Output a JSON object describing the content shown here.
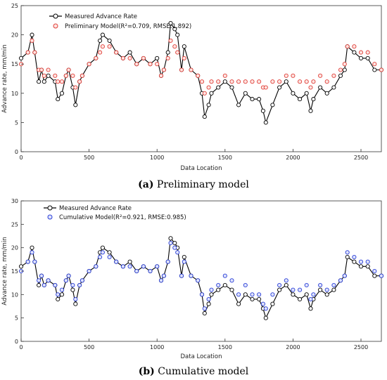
{
  "chart_data": [
    {
      "type": "scatter",
      "caption_label": "(a)",
      "caption_text": "Preliminary model",
      "xlabel": "Data Location",
      "ylabel": "Advance rate, mm/min",
      "xlim": [
        0,
        2650
      ],
      "ylim": [
        0,
        25
      ],
      "xticks": [
        0,
        500,
        1000,
        1500,
        2000,
        2500
      ],
      "yticks": [
        0,
        5,
        10,
        15,
        20,
        25
      ],
      "grid": false,
      "legend_position": "top-left",
      "series": [
        {
          "name": "Measured Advance Rate",
          "color": "#000000",
          "marker": "circle-line",
          "x": [
            0,
            50,
            80,
            100,
            130,
            150,
            170,
            200,
            250,
            270,
            300,
            330,
            350,
            380,
            400,
            430,
            450,
            500,
            550,
            580,
            600,
            650,
            700,
            750,
            800,
            850,
            900,
            950,
            1000,
            1030,
            1050,
            1080,
            1100,
            1130,
            1150,
            1180,
            1200,
            1250,
            1300,
            1330,
            1350,
            1380,
            1400,
            1450,
            1500,
            1550,
            1600,
            1650,
            1700,
            1750,
            1780,
            1800,
            1850,
            1900,
            1950,
            2000,
            2050,
            2100,
            2130,
            2150,
            2200,
            2250,
            2300,
            2350,
            2380,
            2400,
            2450,
            2500,
            2550,
            2600,
            2650
          ],
          "y": [
            16,
            17,
            20,
            17,
            12,
            14,
            12,
            13,
            12,
            9,
            10,
            13,
            14,
            11,
            8,
            12,
            13,
            15,
            16,
            19,
            20,
            19,
            17,
            16,
            17,
            15,
            16,
            15,
            16,
            13,
            14,
            17,
            22,
            21,
            20,
            14,
            18,
            14,
            13,
            10,
            6,
            8,
            10,
            11,
            12,
            11,
            8,
            10,
            9,
            9,
            7,
            5,
            8,
            11,
            12,
            10,
            9,
            10,
            7,
            9,
            11,
            10,
            11,
            13,
            14,
            18,
            17,
            16,
            16,
            14,
            14
          ]
        },
        {
          "name": "Preliminary Model(R²=0.709, RMSE:1.892)",
          "color": "#e0403a",
          "marker": "circle",
          "x": [
            0,
            50,
            80,
            100,
            130,
            150,
            170,
            200,
            250,
            270,
            300,
            330,
            350,
            380,
            400,
            430,
            450,
            500,
            550,
            580,
            600,
            650,
            700,
            750,
            800,
            850,
            900,
            950,
            1000,
            1030,
            1050,
            1080,
            1100,
            1130,
            1150,
            1180,
            1200,
            1250,
            1300,
            1330,
            1350,
            1380,
            1400,
            1450,
            1500,
            1550,
            1600,
            1650,
            1700,
            1750,
            1780,
            1800,
            1850,
            1900,
            1950,
            2000,
            2050,
            2100,
            2130,
            2150,
            2200,
            2250,
            2300,
            2350,
            2380,
            2400,
            2450,
            2500,
            2550,
            2600,
            2650
          ],
          "y": [
            15,
            17,
            19,
            17,
            14,
            14,
            13,
            14,
            13,
            12,
            12,
            13,
            14,
            13,
            11,
            12,
            13,
            15,
            16,
            17,
            18,
            18,
            17,
            16,
            16,
            15,
            16,
            15,
            15,
            13,
            14,
            16,
            19,
            18,
            17,
            14,
            16,
            14,
            13,
            12,
            10,
            11,
            12,
            12,
            13,
            12,
            12,
            12,
            12,
            12,
            11,
            11,
            12,
            12,
            13,
            13,
            12,
            12,
            11,
            12,
            13,
            12,
            13,
            14,
            15,
            18,
            18,
            17,
            17,
            15,
            14
          ]
        }
      ]
    },
    {
      "type": "scatter",
      "caption_label": "(b)",
      "caption_text": "Cumulative model",
      "xlabel": "Data Location",
      "ylabel": "Advance rate, mm/min",
      "xlim": [
        0,
        2650
      ],
      "ylim": [
        0,
        30
      ],
      "xticks": [
        0,
        500,
        1000,
        1500,
        2000,
        2500
      ],
      "yticks": [
        0,
        5,
        10,
        15,
        20,
        25,
        30
      ],
      "grid": false,
      "legend_position": "top-left",
      "series": [
        {
          "name": "Measured Advance Rate",
          "color": "#000000",
          "marker": "circle-line",
          "x": [
            0,
            50,
            80,
            100,
            130,
            150,
            170,
            200,
            250,
            270,
            300,
            330,
            350,
            380,
            400,
            430,
            450,
            500,
            550,
            580,
            600,
            650,
            700,
            750,
            800,
            850,
            900,
            950,
            1000,
            1030,
            1050,
            1080,
            1100,
            1130,
            1150,
            1180,
            1200,
            1250,
            1300,
            1330,
            1350,
            1380,
            1400,
            1450,
            1500,
            1550,
            1600,
            1650,
            1700,
            1750,
            1780,
            1800,
            1850,
            1900,
            1950,
            2000,
            2050,
            2100,
            2130,
            2150,
            2200,
            2250,
            2300,
            2350,
            2380,
            2400,
            2450,
            2500,
            2550,
            2600,
            2650
          ],
          "y": [
            16,
            17,
            20,
            17,
            12,
            14,
            12,
            13,
            12,
            9,
            10,
            13,
            14,
            11,
            8,
            12,
            13,
            15,
            16,
            19,
            20,
            19,
            17,
            16,
            17,
            15,
            16,
            15,
            16,
            13,
            14,
            17,
            22,
            21,
            20,
            14,
            18,
            14,
            13,
            10,
            6,
            8,
            10,
            11,
            12,
            11,
            8,
            10,
            9,
            9,
            7,
            5,
            8,
            11,
            12,
            10,
            9,
            10,
            7,
            9,
            11,
            10,
            11,
            13,
            14,
            18,
            17,
            16,
            16,
            14,
            14
          ]
        },
        {
          "name": "Cumulative Model(R²=0.921, RMSE:0.985)",
          "color": "#2a3fd8",
          "marker": "circle",
          "x": [
            0,
            50,
            80,
            100,
            130,
            150,
            170,
            200,
            250,
            270,
            300,
            330,
            350,
            380,
            400,
            430,
            450,
            500,
            550,
            580,
            600,
            650,
            700,
            750,
            800,
            850,
            900,
            950,
            1000,
            1030,
            1050,
            1080,
            1100,
            1130,
            1150,
            1180,
            1200,
            1250,
            1300,
            1330,
            1350,
            1380,
            1400,
            1450,
            1500,
            1550,
            1600,
            1650,
            1700,
            1750,
            1780,
            1800,
            1850,
            1900,
            1950,
            2000,
            2050,
            2100,
            2130,
            2150,
            2200,
            2250,
            2300,
            2350,
            2380,
            2400,
            2450,
            2500,
            2550,
            2600,
            2650
          ],
          "y": [
            15,
            17,
            19,
            17,
            13,
            14,
            12,
            13,
            12,
            10,
            11,
            13,
            14,
            12,
            9,
            12,
            13,
            15,
            16,
            18,
            19,
            18,
            17,
            16,
            16,
            15,
            16,
            15,
            16,
            13,
            14,
            17,
            21,
            20,
            19,
            14,
            17,
            14,
            13,
            10,
            7,
            9,
            11,
            12,
            14,
            13,
            10,
            12,
            10,
            10,
            8,
            7,
            10,
            12,
            13,
            11,
            11,
            12,
            9,
            10,
            12,
            11,
            12,
            13,
            14,
            19,
            18,
            17,
            17,
            15,
            14
          ]
        }
      ]
    }
  ]
}
